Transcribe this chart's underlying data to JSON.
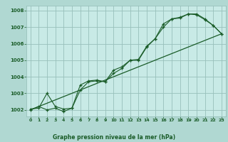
{
  "title": "Graphe pression niveau de la mer (hPa)",
  "bg_color": "#b0d8d2",
  "plot_bg_color": "#c8eae6",
  "grid_color": "#98c0ba",
  "line_color": "#1a5c28",
  "xlim": [
    -0.5,
    23.5
  ],
  "ylim": [
    1001.6,
    1008.3
  ],
  "xticks": [
    0,
    1,
    2,
    3,
    4,
    5,
    6,
    7,
    8,
    9,
    10,
    11,
    12,
    13,
    14,
    15,
    16,
    17,
    18,
    19,
    20,
    21,
    22,
    23
  ],
  "yticks": [
    1002,
    1003,
    1004,
    1005,
    1006,
    1007,
    1008
  ],
  "series1_x": [
    0,
    1,
    2,
    3,
    4,
    5,
    6,
    7,
    8,
    9,
    10,
    11,
    12,
    13,
    14,
    15,
    16,
    17,
    18,
    19,
    20,
    21,
    22,
    23
  ],
  "series1_y": [
    1002.0,
    1002.2,
    1002.0,
    1002.1,
    1001.9,
    1002.1,
    1003.2,
    1003.7,
    1003.75,
    1003.7,
    1004.2,
    1004.5,
    1005.0,
    1005.0,
    1005.8,
    1006.3,
    1007.2,
    1007.5,
    1007.55,
    1007.8,
    1007.75,
    1007.45,
    1007.1,
    1006.6
  ],
  "series2_x": [
    0,
    1,
    2,
    3,
    4,
    5,
    6,
    7,
    8,
    9,
    10,
    11,
    12,
    13,
    14,
    15,
    16,
    17,
    18,
    19,
    20,
    21,
    22,
    23
  ],
  "series2_y": [
    1002.05,
    1002.1,
    1003.0,
    1002.2,
    1002.05,
    1002.1,
    1003.5,
    1003.75,
    1003.8,
    1003.7,
    1004.4,
    1004.6,
    1005.0,
    1005.05,
    1005.85,
    1006.3,
    1007.0,
    1007.5,
    1007.6,
    1007.8,
    1007.8,
    1007.5,
    1007.1,
    1006.6
  ],
  "series3_x": [
    0,
    23
  ],
  "series3_y": [
    1002.0,
    1006.6
  ]
}
